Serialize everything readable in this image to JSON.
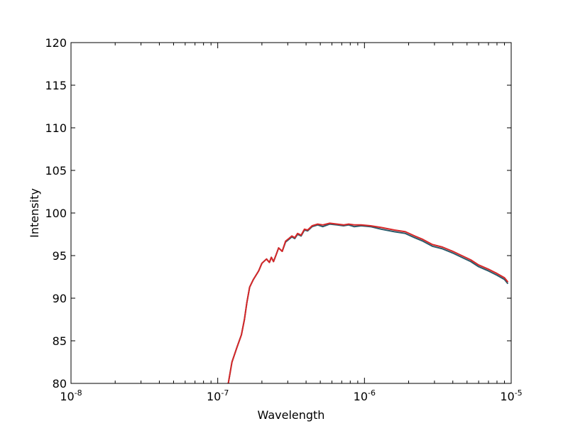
{
  "chart_data": {
    "type": "line",
    "title": "",
    "xlabel": "Wavelength",
    "ylabel": "Intensity",
    "xscale": "log",
    "xlim": [
      1e-08,
      1e-05
    ],
    "ylim": [
      80,
      120
    ],
    "grid": false,
    "x_tick_labels": [
      {
        "base": "10",
        "exp": "-8",
        "value": 1e-08
      },
      {
        "base": "10",
        "exp": "-7",
        "value": 1e-07
      },
      {
        "base": "10",
        "exp": "-6",
        "value": 1e-06
      },
      {
        "base": "10",
        "exp": "-5",
        "value": 1e-05
      }
    ],
    "y_tick_labels": [
      "80",
      "85",
      "90",
      "95",
      "100",
      "105",
      "110",
      "115",
      "120"
    ],
    "series": [
      {
        "color": "#2a5a6a",
        "points": [
          [
            1.18e-07,
            80.0
          ],
          [
            1.25e-07,
            82.5
          ],
          [
            1.35e-07,
            84.2
          ],
          [
            1.45e-07,
            85.7
          ],
          [
            1.52e-07,
            87.5
          ],
          [
            1.58e-07,
            89.5
          ],
          [
            1.65e-07,
            91.3
          ],
          [
            1.75e-07,
            92.2
          ],
          [
            1.9e-07,
            93.2
          ],
          [
            2e-07,
            94.1
          ],
          [
            2.15e-07,
            94.6
          ],
          [
            2.25e-07,
            94.2
          ],
          [
            2.32e-07,
            94.8
          ],
          [
            2.4e-07,
            94.3
          ],
          [
            2.5e-07,
            95.1
          ],
          [
            2.6e-07,
            95.9
          ],
          [
            2.75e-07,
            95.5
          ],
          [
            2.9e-07,
            96.6
          ],
          [
            3.05e-07,
            96.9
          ],
          [
            3.2e-07,
            97.2
          ],
          [
            3.35e-07,
            97.0
          ],
          [
            3.5e-07,
            97.5
          ],
          [
            3.7e-07,
            97.3
          ],
          [
            3.9e-07,
            98.0
          ],
          [
            4.1e-07,
            97.9
          ],
          [
            4.4e-07,
            98.4
          ],
          [
            4.8e-07,
            98.6
          ],
          [
            5.2e-07,
            98.4
          ],
          [
            5.8e-07,
            98.7
          ],
          [
            6.5e-07,
            98.6
          ],
          [
            7.2e-07,
            98.5
          ],
          [
            7.8e-07,
            98.6
          ],
          [
            8.5e-07,
            98.4
          ],
          [
            9.5e-07,
            98.5
          ],
          [
            1.1e-06,
            98.4
          ],
          [
            1.3e-06,
            98.1
          ],
          [
            1.6e-06,
            97.8
          ],
          [
            1.9e-06,
            97.6
          ],
          [
            2.2e-06,
            97.1
          ],
          [
            2.5e-06,
            96.7
          ],
          [
            2.9e-06,
            96.1
          ],
          [
            3.4e-06,
            95.8
          ],
          [
            4e-06,
            95.3
          ],
          [
            4.6e-06,
            94.8
          ],
          [
            5.3e-06,
            94.3
          ],
          [
            6e-06,
            93.7
          ],
          [
            7e-06,
            93.2
          ],
          [
            8e-06,
            92.7
          ],
          [
            9e-06,
            92.2
          ],
          [
            9.5e-06,
            91.7
          ]
        ]
      },
      {
        "color": "#d62728",
        "points": [
          [
            1.18e-07,
            80.0
          ],
          [
            1.25e-07,
            82.5
          ],
          [
            1.35e-07,
            84.2
          ],
          [
            1.45e-07,
            85.7
          ],
          [
            1.52e-07,
            87.5
          ],
          [
            1.58e-07,
            89.5
          ],
          [
            1.65e-07,
            91.3
          ],
          [
            1.75e-07,
            92.2
          ],
          [
            1.9e-07,
            93.2
          ],
          [
            2e-07,
            94.1
          ],
          [
            2.15e-07,
            94.6
          ],
          [
            2.25e-07,
            94.2
          ],
          [
            2.32e-07,
            94.8
          ],
          [
            2.4e-07,
            94.3
          ],
          [
            2.5e-07,
            95.1
          ],
          [
            2.6e-07,
            95.9
          ],
          [
            2.75e-07,
            95.5
          ],
          [
            2.9e-07,
            96.7
          ],
          [
            3.05e-07,
            97.0
          ],
          [
            3.2e-07,
            97.3
          ],
          [
            3.35e-07,
            97.1
          ],
          [
            3.5e-07,
            97.6
          ],
          [
            3.7e-07,
            97.4
          ],
          [
            3.9e-07,
            98.1
          ],
          [
            4.1e-07,
            98.0
          ],
          [
            4.4e-07,
            98.5
          ],
          [
            4.8e-07,
            98.7
          ],
          [
            5.2e-07,
            98.6
          ],
          [
            5.8e-07,
            98.8
          ],
          [
            6.5e-07,
            98.7
          ],
          [
            7.2e-07,
            98.6
          ],
          [
            7.8e-07,
            98.7
          ],
          [
            8.5e-07,
            98.6
          ],
          [
            9.5e-07,
            98.6
          ],
          [
            1.1e-06,
            98.5
          ],
          [
            1.3e-06,
            98.3
          ],
          [
            1.6e-06,
            98.0
          ],
          [
            1.9e-06,
            97.8
          ],
          [
            2.2e-06,
            97.3
          ],
          [
            2.5e-06,
            96.9
          ],
          [
            2.9e-06,
            96.3
          ],
          [
            3.4e-06,
            96.0
          ],
          [
            4e-06,
            95.5
          ],
          [
            4.6e-06,
            95.0
          ],
          [
            5.3e-06,
            94.5
          ],
          [
            6e-06,
            93.9
          ],
          [
            7e-06,
            93.4
          ],
          [
            8e-06,
            92.9
          ],
          [
            9e-06,
            92.4
          ],
          [
            9.5e-06,
            91.9
          ]
        ]
      }
    ]
  }
}
